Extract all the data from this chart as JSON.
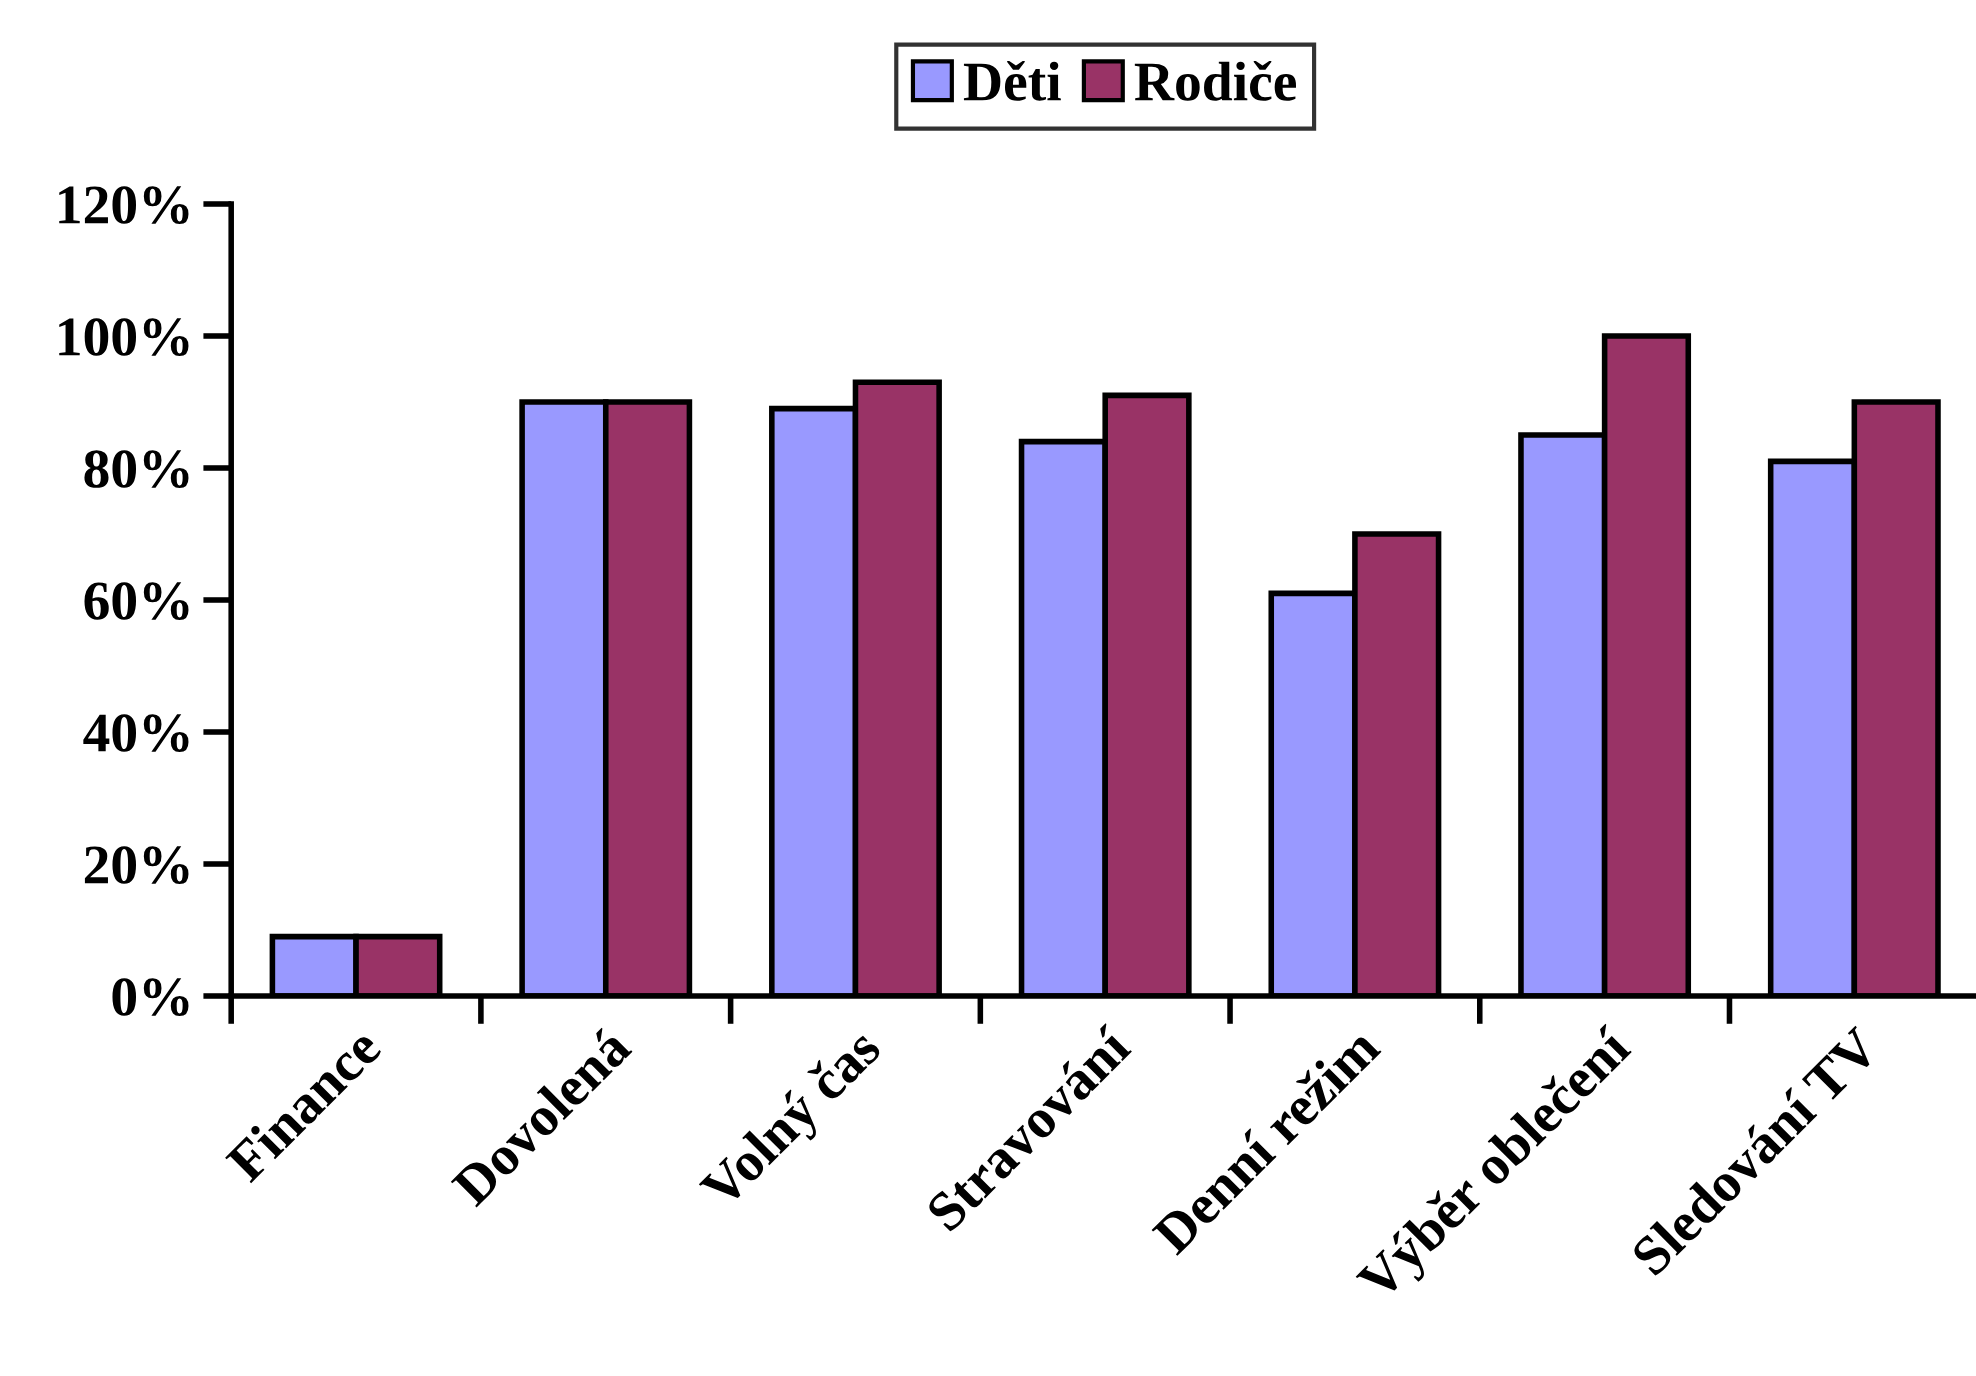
{
  "chart_data": {
    "type": "bar",
    "categories": [
      "Finance",
      "Dovolená",
      "Volný čas",
      "Stravování",
      "Denní režim",
      "Výběr oblečení",
      "Sledování TV"
    ],
    "series": [
      {
        "name": "Děti",
        "color": "#9999ff",
        "values": [
          9,
          90,
          89,
          84,
          61,
          85,
          81
        ]
      },
      {
        "name": "Rodiče",
        "color": "#993366",
        "values": [
          9,
          90,
          93,
          91,
          70,
          100,
          90
        ]
      }
    ],
    "ylim": [
      0,
      120
    ],
    "yticks": [
      {
        "value": 0,
        "label": "0%"
      },
      {
        "value": 20,
        "label": "20%"
      },
      {
        "value": 40,
        "label": "40%"
      },
      {
        "value": 60,
        "label": "60%"
      },
      {
        "value": 80,
        "label": "80%"
      },
      {
        "value": 100,
        "label": "100%"
      },
      {
        "value": 120,
        "label": "120%"
      }
    ],
    "grid": false,
    "legend": "top"
  }
}
